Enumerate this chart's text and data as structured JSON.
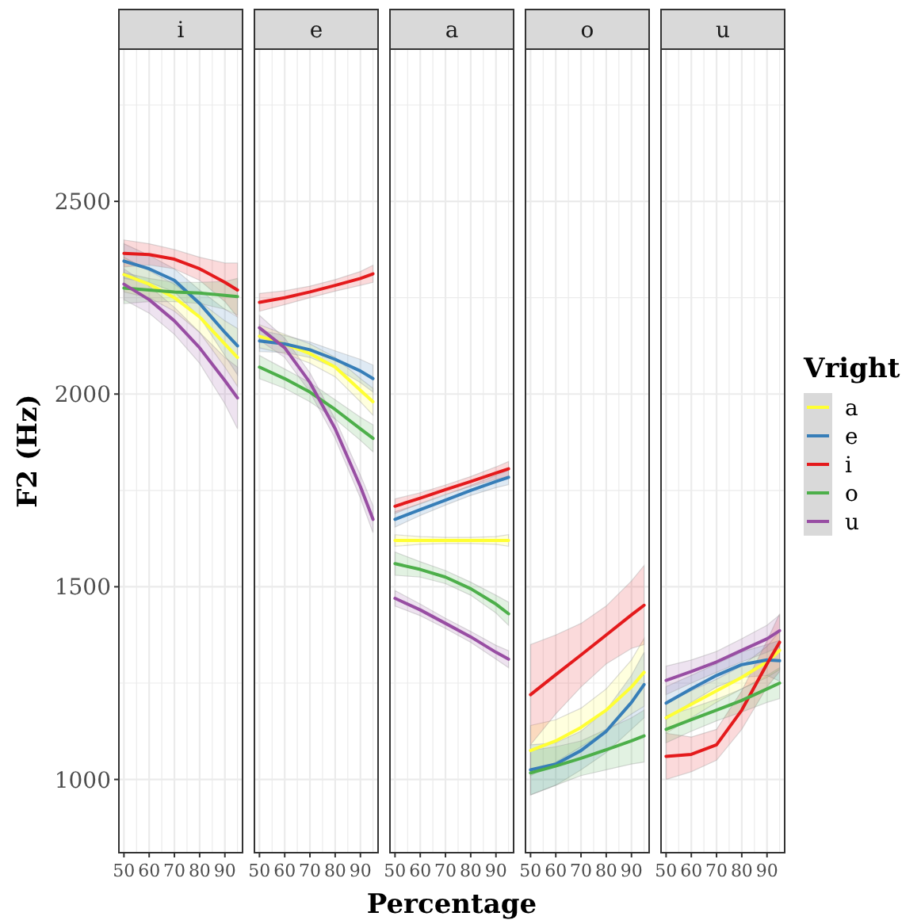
{
  "chart_data": [
    {
      "type": "line",
      "title": "i",
      "ylabel": "F2 (Hz)",
      "xlim": [
        48,
        97
      ],
      "xticks": [
        50,
        60,
        70,
        80,
        90
      ],
      "ylim": [
        810,
        2895
      ],
      "yticks": [
        1000,
        1500,
        2000,
        2500
      ],
      "grid": true,
      "x": [
        50,
        60,
        70,
        80,
        90,
        95
      ],
      "series": [
        {
          "color": "#ffff33",
          "values": [
            2310,
            2285,
            2250,
            2200,
            2130,
            2095
          ],
          "lower": [
            2265,
            2250,
            2215,
            2160,
            2070,
            2020
          ],
          "upper": [
            2355,
            2320,
            2285,
            2240,
            2190,
            2170
          ]
        },
        {
          "color": "#377eb8",
          "values": [
            2345,
            2325,
            2295,
            2235,
            2160,
            2125
          ],
          "lower": [
            2300,
            2290,
            2265,
            2200,
            2100,
            2050
          ],
          "upper": [
            2390,
            2360,
            2325,
            2270,
            2220,
            2200
          ]
        },
        {
          "color": "#e41a1c",
          "values": [
            2365,
            2362,
            2350,
            2325,
            2290,
            2270
          ],
          "lower": [
            2330,
            2335,
            2325,
            2295,
            2240,
            2200
          ],
          "upper": [
            2400,
            2390,
            2375,
            2355,
            2340,
            2340
          ]
        },
        {
          "color": "#4daf4a",
          "values": [
            2275,
            2270,
            2265,
            2262,
            2256,
            2253
          ],
          "lower": [
            2235,
            2240,
            2240,
            2235,
            2220,
            2205
          ],
          "upper": [
            2315,
            2300,
            2290,
            2290,
            2292,
            2300
          ]
        },
        {
          "color": "#984ea3",
          "values": [
            2285,
            2245,
            2190,
            2120,
            2035,
            1990
          ],
          "lower": [
            2245,
            2210,
            2155,
            2080,
            1975,
            1910
          ],
          "upper": [
            2325,
            2280,
            2225,
            2160,
            2095,
            2070
          ]
        }
      ]
    },
    {
      "type": "line",
      "title": "e",
      "tick_labels": "x",
      "xlim": [
        48,
        97
      ],
      "xticks": [
        50,
        60,
        70,
        80,
        90
      ],
      "ylim": [
        810,
        2895
      ],
      "yticks": [
        1000,
        1500,
        2000,
        2500
      ],
      "grid": true,
      "x": [
        50,
        60,
        70,
        80,
        90,
        95
      ],
      "series": [
        {
          "color": "#ffff33",
          "values": [
            2150,
            2130,
            2105,
            2070,
            2010,
            1980
          ],
          "lower": [
            2120,
            2105,
            2080,
            2045,
            1980,
            1945
          ],
          "upper": [
            2180,
            2155,
            2130,
            2095,
            2040,
            2015
          ]
        },
        {
          "color": "#377eb8",
          "values": [
            2138,
            2130,
            2115,
            2090,
            2060,
            2040
          ],
          "lower": [
            2110,
            2108,
            2095,
            2068,
            2030,
            2005
          ],
          "upper": [
            2166,
            2152,
            2135,
            2112,
            2090,
            2075
          ]
        },
        {
          "color": "#e41a1c",
          "values": [
            2238,
            2250,
            2265,
            2282,
            2300,
            2312
          ],
          "lower": [
            2215,
            2232,
            2250,
            2267,
            2282,
            2290
          ],
          "upper": [
            2261,
            2268,
            2280,
            2297,
            2318,
            2334
          ]
        },
        {
          "color": "#4daf4a",
          "values": [
            2070,
            2040,
            2005,
            1960,
            1910,
            1885
          ],
          "lower": [
            2040,
            2015,
            1980,
            1935,
            1880,
            1850
          ],
          "upper": [
            2100,
            2065,
            2030,
            1985,
            1940,
            1920
          ]
        },
        {
          "color": "#984ea3",
          "values": [
            2172,
            2120,
            2030,
            1910,
            1760,
            1675
          ],
          "lower": [
            2140,
            2095,
            2005,
            1885,
            1730,
            1640
          ],
          "upper": [
            2204,
            2145,
            2055,
            1935,
            1790,
            1710
          ]
        }
      ]
    },
    {
      "type": "line",
      "title": "a",
      "xlabel": "Percentage",
      "tick_labels": "x",
      "xlim": [
        48,
        97
      ],
      "xticks": [
        50,
        60,
        70,
        80,
        90
      ],
      "ylim": [
        810,
        2895
      ],
      "yticks": [
        1000,
        1500,
        2000,
        2500
      ],
      "grid": true,
      "x": [
        50,
        60,
        70,
        80,
        90,
        95
      ],
      "series": [
        {
          "color": "#ffff33",
          "values": [
            1620,
            1620,
            1620,
            1620,
            1620,
            1620
          ],
          "lower": [
            1605,
            1610,
            1612,
            1612,
            1610,
            1605
          ],
          "upper": [
            1635,
            1630,
            1628,
            1628,
            1630,
            1635
          ]
        },
        {
          "color": "#377eb8",
          "values": [
            1675,
            1700,
            1725,
            1750,
            1773,
            1784
          ],
          "lower": [
            1655,
            1685,
            1712,
            1737,
            1757,
            1765
          ],
          "upper": [
            1695,
            1715,
            1738,
            1763,
            1789,
            1803
          ]
        },
        {
          "color": "#e41a1c",
          "values": [
            1709,
            1730,
            1752,
            1773,
            1795,
            1806
          ],
          "lower": [
            1690,
            1716,
            1740,
            1760,
            1779,
            1787
          ],
          "upper": [
            1728,
            1744,
            1764,
            1786,
            1811,
            1825
          ]
        },
        {
          "color": "#4daf4a",
          "values": [
            1560,
            1545,
            1525,
            1495,
            1455,
            1430
          ],
          "lower": [
            1530,
            1525,
            1508,
            1478,
            1432,
            1400
          ],
          "upper": [
            1590,
            1565,
            1542,
            1512,
            1478,
            1460
          ]
        },
        {
          "color": "#984ea3",
          "values": [
            1470,
            1440,
            1405,
            1370,
            1330,
            1312
          ],
          "lower": [
            1450,
            1425,
            1392,
            1356,
            1312,
            1290
          ],
          "upper": [
            1490,
            1455,
            1418,
            1384,
            1348,
            1334
          ]
        }
      ]
    },
    {
      "type": "line",
      "title": "o",
      "tick_labels": "x",
      "xlim": [
        48,
        97
      ],
      "xticks": [
        50,
        60,
        70,
        80,
        90
      ],
      "ylim": [
        810,
        2895
      ],
      "yticks": [
        1000,
        1500,
        2000,
        2500
      ],
      "grid": true,
      "x": [
        50,
        60,
        70,
        80,
        90,
        95
      ],
      "series": [
        {
          "color": "#ffff33",
          "values": [
            1075,
            1100,
            1135,
            1180,
            1240,
            1278
          ],
          "lower": [
            1010,
            1045,
            1085,
            1125,
            1170,
            1190
          ],
          "upper": [
            1140,
            1155,
            1185,
            1235,
            1310,
            1366
          ]
        },
        {
          "color": "#377eb8",
          "values": [
            1025,
            1040,
            1075,
            1125,
            1200,
            1246
          ],
          "lower": [
            960,
            985,
            1025,
            1070,
            1130,
            1160
          ],
          "upper": [
            1090,
            1095,
            1125,
            1180,
            1270,
            1330
          ]
        },
        {
          "color": "#e41a1c",
          "values": [
            1220,
            1272,
            1323,
            1375,
            1427,
            1452
          ],
          "lower": [
            1090,
            1170,
            1240,
            1300,
            1340,
            1350
          ],
          "upper": [
            1350,
            1375,
            1405,
            1450,
            1515,
            1555
          ]
        },
        {
          "color": "#4daf4a",
          "values": [
            1017,
            1035,
            1055,
            1077,
            1100,
            1113
          ],
          "lower": [
            960,
            985,
            1010,
            1025,
            1040,
            1045
          ],
          "upper": [
            1075,
            1085,
            1100,
            1130,
            1160,
            1180
          ]
        },
        {
          "color": "#984ea3",
          "values": [
            null,
            null,
            null,
            null,
            null,
            null
          ]
        }
      ]
    },
    {
      "type": "line",
      "title": "u",
      "legend": "right",
      "legend_title": "Vright",
      "tick_labels": "x",
      "xlim": [
        48,
        97
      ],
      "xticks": [
        50,
        60,
        70,
        80,
        90
      ],
      "ylim": [
        810,
        2895
      ],
      "yticks": [
        1000,
        1500,
        2000,
        2500
      ],
      "grid": true,
      "x": [
        50,
        60,
        70,
        80,
        90,
        95
      ],
      "series": [
        {
          "name": "a",
          "color": "#ffff33",
          "values": [
            1160,
            1195,
            1230,
            1265,
            1305,
            1335
          ],
          "lower": [
            1120,
            1160,
            1200,
            1235,
            1265,
            1285
          ],
          "upper": [
            1200,
            1230,
            1260,
            1295,
            1345,
            1385
          ]
        },
        {
          "name": "e",
          "color": "#377eb8",
          "values": [
            1198,
            1235,
            1270,
            1298,
            1310,
            1308
          ],
          "lower": [
            1155,
            1200,
            1240,
            1265,
            1270,
            1255
          ],
          "upper": [
            1241,
            1270,
            1300,
            1331,
            1350,
            1361
          ]
        },
        {
          "name": "i",
          "color": "#e41a1c",
          "values": [
            1060,
            1065,
            1090,
            1180,
            1300,
            1356
          ],
          "lower": [
            1000,
            1020,
            1050,
            1130,
            1240,
            1280
          ],
          "upper": [
            1120,
            1110,
            1130,
            1230,
            1360,
            1430
          ]
        },
        {
          "name": "o",
          "color": "#4daf4a",
          "values": [
            1130,
            1155,
            1180,
            1205,
            1235,
            1250
          ],
          "lower": [
            1095,
            1125,
            1152,
            1175,
            1200,
            1210
          ],
          "upper": [
            1165,
            1185,
            1208,
            1235,
            1270,
            1290
          ]
        },
        {
          "name": "u",
          "color": "#984ea3",
          "values": [
            1257,
            1280,
            1305,
            1335,
            1365,
            1386
          ],
          "lower": [
            1220,
            1250,
            1278,
            1305,
            1330,
            1345
          ],
          "upper": [
            1294,
            1310,
            1332,
            1365,
            1400,
            1427
          ]
        }
      ]
    }
  ]
}
